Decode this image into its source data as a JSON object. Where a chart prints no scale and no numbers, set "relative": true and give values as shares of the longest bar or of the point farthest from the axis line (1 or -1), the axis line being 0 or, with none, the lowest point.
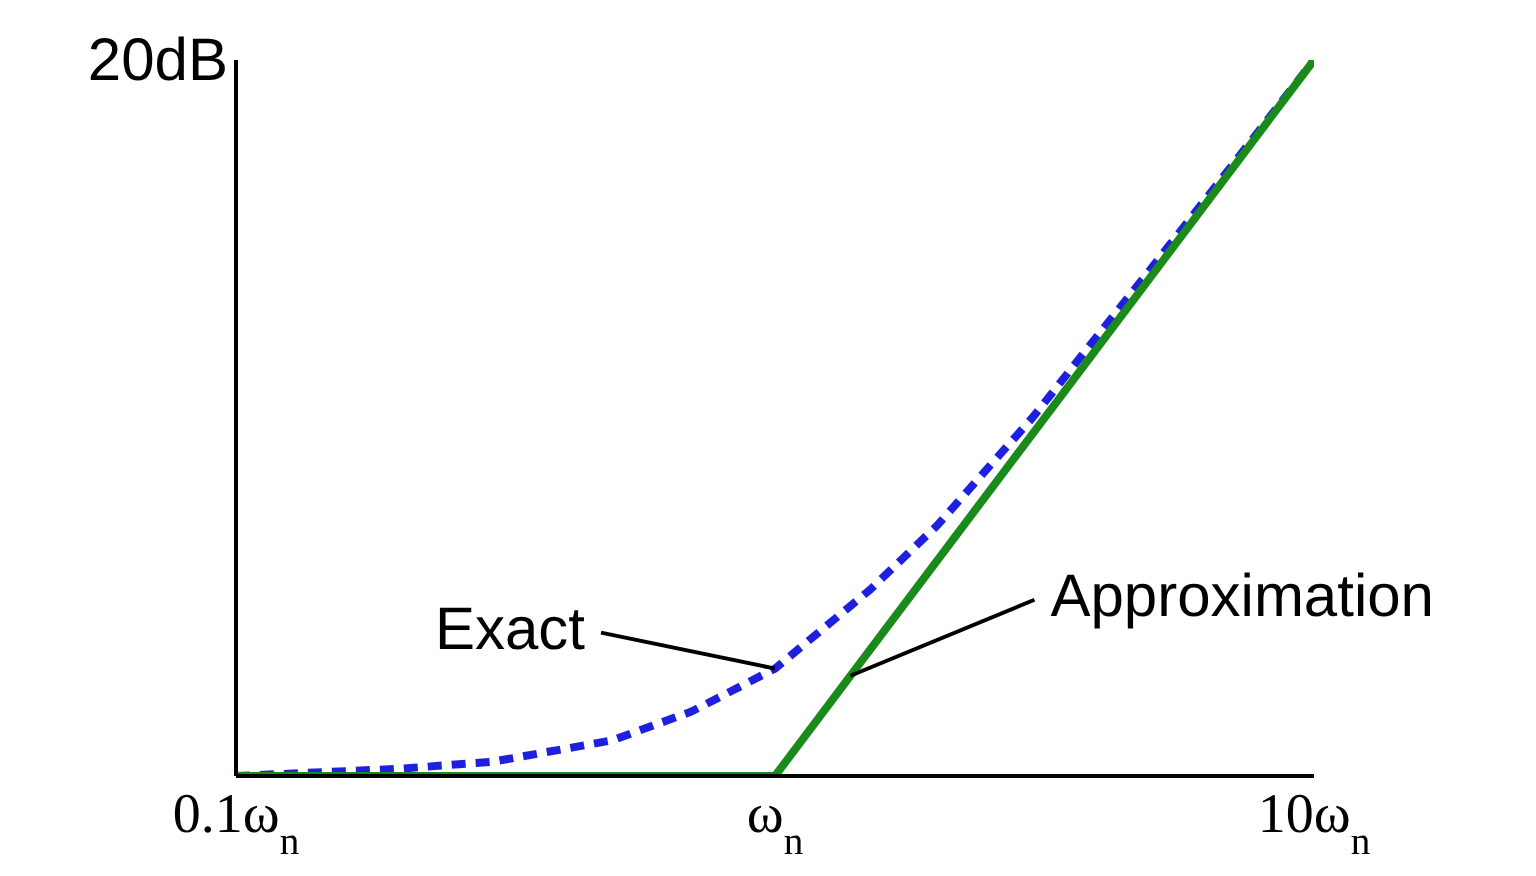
{
  "chart_data": {
    "type": "line",
    "relative": true,
    "ylabel": "20dB",
    "log": "x",
    "xlim": [
      0.1,
      10
    ],
    "xticks": [
      {
        "value": 0.1,
        "label": "0.1ω$_{n}$"
      },
      {
        "value": 1,
        "label": "ω$_{n}$"
      },
      {
        "value": 10,
        "label": "10ω$_{n}$"
      }
    ],
    "grid": false,
    "legend": false,
    "marker": "none",
    "series": [
      {
        "name": "Exact",
        "color": "#1f1fe0",
        "line_style": "dashed",
        "x": [
          0.1,
          0.2,
          0.3,
          0.5,
          0.7,
          1,
          1.5,
          2,
          3,
          5,
          7,
          10
        ],
        "values": [
          0,
          0.01,
          0.02,
          0.05,
          0.09,
          0.15,
          0.26,
          0.35,
          0.5,
          0.71,
          0.85,
          1
        ]
      },
      {
        "name": "Approximation",
        "color": "#1a8a1a",
        "line_style": "solid",
        "x": [
          0.1,
          1,
          10
        ],
        "values": [
          0,
          0,
          1
        ]
      }
    ]
  }
}
